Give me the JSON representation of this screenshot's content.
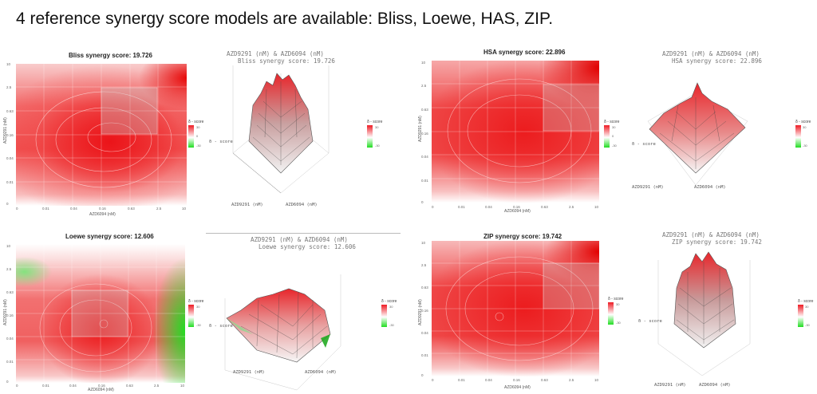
{
  "headline": "4 reference synergy score models are available:  Bliss, Loewe, HAS, ZIP.",
  "panels": [
    {
      "key": "bliss",
      "heat_title": "Bliss synergy score: 19.726",
      "surface_title_line1": "AZD9291 (nM) & AZD6094 (nM)",
      "surface_title_line2": "Bliss synergy score: 19.726",
      "x_label": "AZD6094 (nM)",
      "y_label": "AZD9291 (nM)",
      "surface_x_label": "AZD9291 (nM)",
      "surface_y_label": "AZD6094 (nM)",
      "z_label": "δ - score",
      "legend_title": "δ - score",
      "legend_ticks": [
        "30",
        "15",
        "0",
        "-15",
        "-30"
      ]
    },
    {
      "key": "hsa",
      "heat_title": "HSA synergy score: 22.896",
      "surface_title_line1": "AZD9291 (nM) & AZD6094 (nM)",
      "surface_title_line2": "HSA synergy score: 22.896",
      "x_label": "AZD6094 (nM)",
      "y_label": "AZD9291 (nM)",
      "surface_x_label": "AZD9291 (nM)",
      "surface_y_label": "AZD6094 (nM)",
      "z_label": "δ - score",
      "legend_title": "δ - score",
      "legend_ticks": [
        "30",
        "15",
        "0",
        "-15",
        "-30"
      ]
    },
    {
      "key": "loewe",
      "heat_title": "Loewe synergy score: 12.606",
      "surface_title_line1": "AZD9291 (nM) & AZD6094 (nM)",
      "surface_title_line2": "Loewe synergy score: 12.606",
      "x_label": "AZD6094 (nM)",
      "y_label": "AZD9291 (nM)",
      "surface_x_label": "AZD9291 (nM)",
      "surface_y_label": "AZD6094 (nM)",
      "z_label": "δ - score",
      "legend_title": "δ - score",
      "legend_ticks": [
        "30",
        "15",
        "0",
        "-15",
        "-30"
      ]
    },
    {
      "key": "zip",
      "heat_title": "ZIP synergy score: 19.742",
      "surface_title_line1": "AZD9291 (nM) & AZD6094 (nM)",
      "surface_title_line2": "ZIP synergy score: 19.742",
      "x_label": "AZD6094 (nM)",
      "y_label": "AZD9291 (nM)",
      "surface_x_label": "AZD9291 (nM)",
      "surface_y_label": "AZD6094 (nM)",
      "z_label": "δ - score",
      "legend_title": "δ - score",
      "legend_ticks": [
        "30",
        "15",
        "0",
        "-15",
        "-30"
      ]
    }
  ],
  "x_ticks": [
    "0",
    "0.01",
    "0.04",
    "0.16",
    "0.63",
    "2.5",
    "10"
  ],
  "y_ticks": [
    "0",
    "0.01",
    "0.04",
    "0.16",
    "0.63",
    "2.5",
    "10"
  ],
  "colors": {
    "synergy": "#ee1c25",
    "antagonism": "#22dd22",
    "neutral": "#ffffff"
  }
}
